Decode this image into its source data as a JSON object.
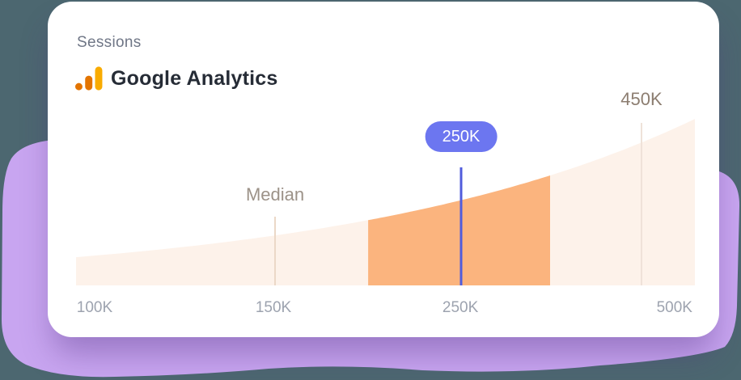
{
  "header": {
    "metric_label": "Sessions",
    "source_name": "Google Analytics",
    "logo_icon": "google-analytics-icon"
  },
  "colors": {
    "background": "#4C6770",
    "blob": "#C8A5F0",
    "card": "#FFFFFF",
    "area_fill": "#FDF2EA",
    "highlight_fill": "#FBB47E",
    "cursor_line": "#515CDC",
    "badge_bg": "#6C76F0",
    "badge_text": "#FFFFFF",
    "median_line": "#EBD8C7",
    "target_line": "#EFE2D9",
    "axis_text": "#9DA3AF",
    "median_text": "#9C9288",
    "target_text": "#8C7D70",
    "logo_amber": "#F9AB00",
    "logo_orange": "#E37400"
  },
  "chart_data": {
    "type": "area",
    "description_of_series": "stylized exponential distribution of sessions from 100K to 500K",
    "x_ticks": [
      {
        "label": "100K",
        "pos": 0.03
      },
      {
        "label": "150K",
        "pos": 0.319
      },
      {
        "label": "250K",
        "pos": 0.621
      },
      {
        "label": "500K",
        "pos": 0.967
      }
    ],
    "curve": {
      "shape": "exponential",
      "start_height_frac": 0.168,
      "end_height_frac": 0.99
    },
    "highlight_band": {
      "from": 0.472,
      "to": 0.766
    },
    "markers": {
      "median": {
        "label": "Median",
        "pos": 0.3216
      },
      "current": {
        "label": "250K",
        "pos": 0.6222
      },
      "target": {
        "label": "450K",
        "pos": 0.9137
      }
    },
    "legend": "none",
    "grid": "off"
  }
}
